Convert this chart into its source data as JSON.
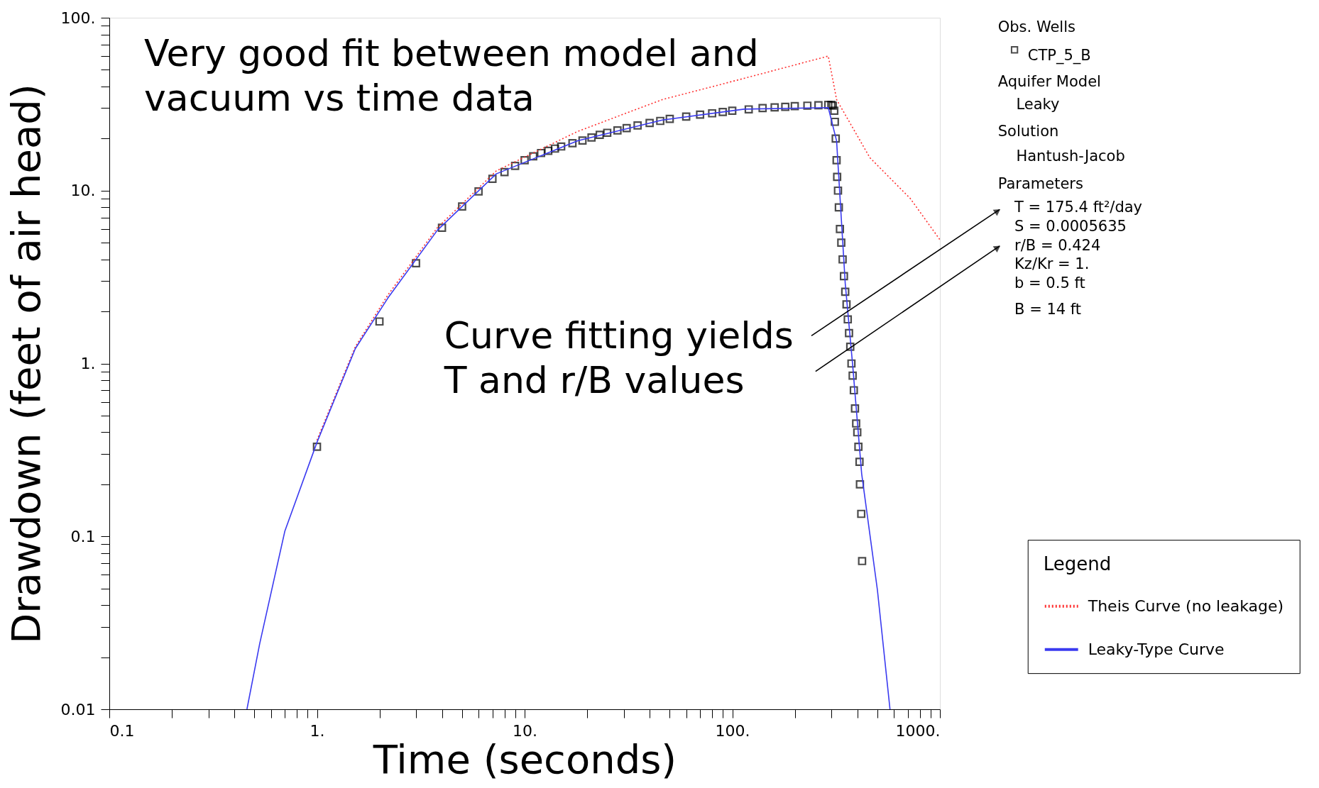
{
  "chart_data": {
    "type": "line",
    "xlabel": "Time (seconds)",
    "ylabel": "Drawdown (feet of air head)",
    "log": "xy",
    "grid": false,
    "legend": "right",
    "legend_title": "Legend",
    "xlim": [
      0.1,
      1000
    ],
    "ylim": [
      0.01,
      100
    ],
    "xticks": [
      {
        "value": 0.1,
        "label": "0.1"
      },
      {
        "value": 0.2,
        "label": null
      },
      {
        "value": 0.3,
        "label": null
      },
      {
        "value": 0.4,
        "label": null
      },
      {
        "value": 0.5,
        "label": null
      },
      {
        "value": 0.6,
        "label": null
      },
      {
        "value": 0.7,
        "label": null
      },
      {
        "value": 0.8,
        "label": null
      },
      {
        "value": 0.9,
        "label": null
      },
      {
        "value": 1,
        "label": "1."
      },
      {
        "value": 2,
        "label": null
      },
      {
        "value": 3,
        "label": null
      },
      {
        "value": 4,
        "label": null
      },
      {
        "value": 5,
        "label": null
      },
      {
        "value": 6,
        "label": null
      },
      {
        "value": 7,
        "label": null
      },
      {
        "value": 8,
        "label": null
      },
      {
        "value": 9,
        "label": null
      },
      {
        "value": 10,
        "label": "10."
      },
      {
        "value": 20,
        "label": null
      },
      {
        "value": 30,
        "label": null
      },
      {
        "value": 40,
        "label": null
      },
      {
        "value": 50,
        "label": null
      },
      {
        "value": 60,
        "label": null
      },
      {
        "value": 70,
        "label": null
      },
      {
        "value": 80,
        "label": null
      },
      {
        "value": 90,
        "label": null
      },
      {
        "value": 100,
        "label": "100."
      },
      {
        "value": 200,
        "label": null
      },
      {
        "value": 300,
        "label": null
      },
      {
        "value": 400,
        "label": null
      },
      {
        "value": 500,
        "label": null
      },
      {
        "value": 600,
        "label": null
      },
      {
        "value": 700,
        "label": null
      },
      {
        "value": 800,
        "label": null
      },
      {
        "value": 900,
        "label": null
      },
      {
        "value": 1000,
        "label": "1000."
      }
    ],
    "yticks": [
      {
        "value": 0.01,
        "label": "0.01"
      },
      {
        "value": 0.02,
        "label": null
      },
      {
        "value": 0.03,
        "label": null
      },
      {
        "value": 0.04,
        "label": null
      },
      {
        "value": 0.05,
        "label": null
      },
      {
        "value": 0.06,
        "label": null
      },
      {
        "value": 0.07,
        "label": null
      },
      {
        "value": 0.08,
        "label": null
      },
      {
        "value": 0.09,
        "label": null
      },
      {
        "value": 0.1,
        "label": "0.1"
      },
      {
        "value": 0.2,
        "label": null
      },
      {
        "value": 0.3,
        "label": null
      },
      {
        "value": 0.4,
        "label": null
      },
      {
        "value": 0.5,
        "label": null
      },
      {
        "value": 0.6,
        "label": null
      },
      {
        "value": 0.7,
        "label": null
      },
      {
        "value": 0.8,
        "label": null
      },
      {
        "value": 0.9,
        "label": null
      },
      {
        "value": 1,
        "label": "1."
      },
      {
        "value": 2,
        "label": null
      },
      {
        "value": 3,
        "label": null
      },
      {
        "value": 4,
        "label": null
      },
      {
        "value": 5,
        "label": null
      },
      {
        "value": 6,
        "label": null
      },
      {
        "value": 7,
        "label": null
      },
      {
        "value": 8,
        "label": null
      },
      {
        "value": 9,
        "label": null
      },
      {
        "value": 10,
        "label": "10."
      },
      {
        "value": 20,
        "label": null
      },
      {
        "value": 30,
        "label": null
      },
      {
        "value": 40,
        "label": null
      },
      {
        "value": 50,
        "label": null
      },
      {
        "value": 60,
        "label": null
      },
      {
        "value": 70,
        "label": null
      },
      {
        "value": 80,
        "label": null
      },
      {
        "value": 90,
        "label": null
      },
      {
        "value": 100,
        "label": "100."
      }
    ],
    "series": [
      {
        "name": "CTP_5_B",
        "type": "scatter",
        "marker": "square",
        "color": "#000000",
        "x": [
          1,
          2,
          3,
          4,
          5,
          6,
          7,
          8,
          9,
          10,
          11,
          12,
          13,
          14,
          15,
          17,
          19,
          21,
          23,
          25,
          28,
          31,
          35,
          40,
          45,
          50,
          60,
          70,
          80,
          90,
          100,
          120,
          140,
          160,
          180,
          200,
          230,
          260,
          290,
          300,
          305,
          310,
          312,
          315,
          318,
          320,
          323,
          326,
          330,
          335,
          340,
          345,
          350,
          355,
          360,
          365,
          370,
          375,
          380,
          385,
          390,
          395,
          400,
          405,
          410,
          412,
          418,
          422
        ],
        "values": [
          0.33,
          1.75,
          3.8,
          6.1,
          8.1,
          9.9,
          11.7,
          12.8,
          13.9,
          15,
          15.8,
          16.5,
          17,
          17.5,
          18,
          18.8,
          19.5,
          20.3,
          21,
          21.6,
          22.3,
          23,
          23.8,
          24.6,
          25.3,
          26,
          26.8,
          27.5,
          28,
          28.5,
          29,
          29.5,
          30,
          30.3,
          30.5,
          30.8,
          31,
          31.2,
          31.3,
          31.3,
          31,
          29,
          25,
          20,
          15,
          12,
          10,
          8,
          6,
          5,
          4,
          3.2,
          2.6,
          2.2,
          1.8,
          1.5,
          1.25,
          1.0,
          0.85,
          0.7,
          0.55,
          0.45,
          0.4,
          0.33,
          0.27,
          0.2,
          0.135,
          0.072
        ]
      },
      {
        "name": "Theis Curve (no leakage)",
        "type": "line",
        "line_style": "dotted",
        "color": "#ff3030",
        "x": [
          1,
          1.53,
          2.2,
          3.8,
          7.3,
          18,
          46,
          114,
          290,
          318,
          460,
          720,
          1000
        ],
        "values": [
          0.36,
          1.25,
          2.5,
          6.1,
          13,
          22,
          33.6,
          44.6,
          60,
          33.6,
          15.5,
          9,
          5.2
        ]
      },
      {
        "name": "Leaky-Type Curve",
        "type": "line",
        "line_style": "solid",
        "color": "#3a3af0",
        "x": [
          0.46,
          0.53,
          0.7,
          1,
          1.53,
          2.2,
          3.8,
          7.3,
          18,
          46,
          114,
          290,
          318,
          350,
          380,
          420,
          500,
          575
        ],
        "values": [
          0.01,
          0.024,
          0.107,
          0.35,
          1.22,
          2.4,
          5.9,
          12.5,
          19.4,
          25.6,
          29.6,
          30.2,
          19.4,
          2.9,
          0.98,
          0.23,
          0.049,
          0.01
        ]
      }
    ],
    "annotations": [
      "Very good fit between model and\nvacuum vs time data",
      "Curve fitting yields\nT and r/B values",
      "Obs. Wells",
      "Aquifer Model",
      "Leaky",
      "Solution",
      "Hantush-Jacob",
      "Parameters",
      "T        = 175.4 ft²/day",
      "S        = 0.0005635",
      "r/B     = 0.424",
      "Kz/Kr = 1.",
      "b        = 0.5 ft",
      "B        = 14 ft"
    ]
  }
}
